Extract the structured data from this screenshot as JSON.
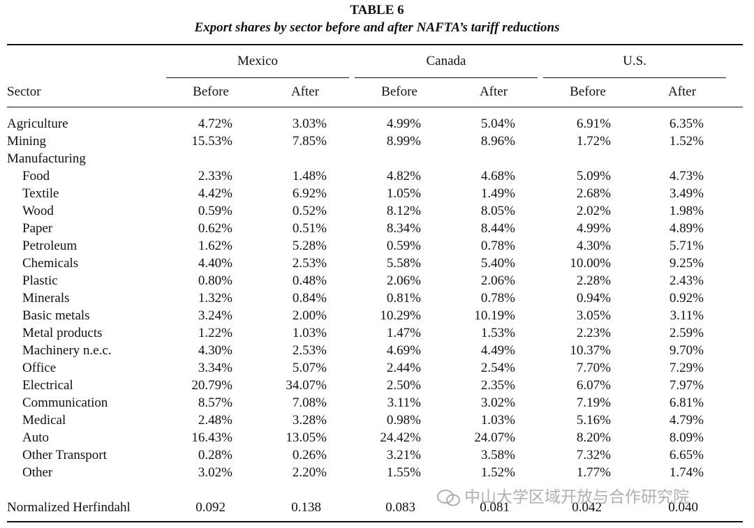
{
  "header": {
    "title": "TABLE 6",
    "subtitle": "Export shares by sector before and after NAFTA’s tariff reductions"
  },
  "table": {
    "groups": [
      "Mexico",
      "Canada",
      "U.S."
    ],
    "columns": [
      "Sector",
      "Before",
      "After",
      "Before",
      "After",
      "Before",
      "After"
    ],
    "rows": [
      {
        "label": "Agriculture",
        "values": [
          "4.72%",
          "3.03%",
          "4.99%",
          "5.04%",
          "6.91%",
          "6.35%"
        ]
      },
      {
        "label": "Mining",
        "values": [
          "15.53%",
          "7.85%",
          "8.99%",
          "8.96%",
          "1.72%",
          "1.52%"
        ]
      },
      {
        "label": "Manufacturing",
        "subrows": [
          {
            "label": "Food",
            "values": [
              "2.33%",
              "1.48%",
              "4.82%",
              "4.68%",
              "5.09%",
              "4.73%"
            ]
          },
          {
            "label": "Textile",
            "values": [
              "4.42%",
              "6.92%",
              "1.05%",
              "1.49%",
              "2.68%",
              "3.49%"
            ]
          },
          {
            "label": "Wood",
            "values": [
              "0.59%",
              "0.52%",
              "8.12%",
              "8.05%",
              "2.02%",
              "1.98%"
            ]
          },
          {
            "label": "Paper",
            "values": [
              "0.62%",
              "0.51%",
              "8.34%",
              "8.44%",
              "4.99%",
              "4.89%"
            ]
          },
          {
            "label": "Petroleum",
            "values": [
              "1.62%",
              "5.28%",
              "0.59%",
              "0.78%",
              "4.30%",
              "5.71%"
            ]
          },
          {
            "label": "Chemicals",
            "values": [
              "4.40%",
              "2.53%",
              "5.58%",
              "5.40%",
              "10.00%",
              "9.25%"
            ]
          },
          {
            "label": "Plastic",
            "values": [
              "0.80%",
              "0.48%",
              "2.06%",
              "2.06%",
              "2.28%",
              "2.43%"
            ]
          },
          {
            "label": "Minerals",
            "values": [
              "1.32%",
              "0.84%",
              "0.81%",
              "0.78%",
              "0.94%",
              "0.92%"
            ]
          },
          {
            "label": "Basic metals",
            "values": [
              "3.24%",
              "2.00%",
              "10.29%",
              "10.19%",
              "3.05%",
              "3.11%"
            ]
          },
          {
            "label": "Metal products",
            "values": [
              "1.22%",
              "1.03%",
              "1.47%",
              "1.53%",
              "2.23%",
              "2.59%"
            ]
          },
          {
            "label": "Machinery n.e.c.",
            "values": [
              "4.30%",
              "2.53%",
              "4.69%",
              "4.49%",
              "10.37%",
              "9.70%"
            ]
          },
          {
            "label": "Office",
            "values": [
              "3.34%",
              "5.07%",
              "2.44%",
              "2.54%",
              "7.70%",
              "7.29%"
            ]
          },
          {
            "label": "Electrical",
            "values": [
              "20.79%",
              "34.07%",
              "2.50%",
              "2.35%",
              "6.07%",
              "7.97%"
            ]
          },
          {
            "label": "Communication",
            "values": [
              "8.57%",
              "7.08%",
              "3.11%",
              "3.02%",
              "7.19%",
              "6.81%"
            ]
          },
          {
            "label": "Medical",
            "values": [
              "2.48%",
              "3.28%",
              "0.98%",
              "1.03%",
              "5.16%",
              "4.79%"
            ]
          },
          {
            "label": "Auto",
            "values": [
              "16.43%",
              "13.05%",
              "24.42%",
              "24.07%",
              "8.20%",
              "8.09%"
            ]
          },
          {
            "label": "Other Transport",
            "values": [
              "0.28%",
              "0.26%",
              "3.21%",
              "3.58%",
              "7.32%",
              "6.65%"
            ]
          },
          {
            "label": "Other",
            "values": [
              "3.02%",
              "2.20%",
              "1.55%",
              "1.52%",
              "1.77%",
              "1.74%"
            ]
          }
        ]
      }
    ],
    "summary": {
      "label": "Normalized Herfindahl",
      "values": [
        "0.092",
        "0.138",
        "0.083",
        "0.081",
        "0.042",
        "0.040"
      ]
    }
  },
  "watermark": "中山大学区域开放与合作研究院"
}
